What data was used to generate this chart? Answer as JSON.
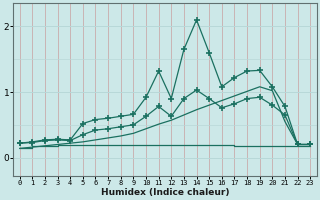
{
  "title": "",
  "xlabel": "Humidex (Indice chaleur)",
  "bg_color": "#cce8e8",
  "grid_color_h": "#b8d8d8",
  "grid_color_v": "#d4b0b0",
  "line_color": "#1a7060",
  "xlim": [
    -0.5,
    23.5
  ],
  "ylim": [
    -0.28,
    2.35
  ],
  "yticks": [
    0,
    1,
    2
  ],
  "ytick_labels": [
    "0",
    "1",
    "2"
  ],
  "xticks": [
    0,
    1,
    2,
    3,
    4,
    5,
    6,
    7,
    8,
    9,
    10,
    11,
    12,
    13,
    14,
    15,
    16,
    17,
    18,
    19,
    20,
    21,
    22,
    23
  ],
  "series1_marked": {
    "x": [
      0,
      1,
      2,
      3,
      4,
      5,
      6,
      7,
      8,
      9,
      10,
      11,
      12,
      13,
      14,
      15,
      16,
      17,
      18,
      19,
      20,
      21,
      22,
      23
    ],
    "y": [
      0.22,
      0.24,
      0.27,
      0.28,
      0.27,
      0.52,
      0.58,
      0.6,
      0.63,
      0.66,
      0.92,
      1.32,
      0.9,
      1.65,
      2.1,
      1.6,
      1.08,
      1.22,
      1.32,
      1.33,
      1.08,
      0.78,
      0.2,
      0.2
    ]
  },
  "series2_marked": {
    "x": [
      0,
      1,
      2,
      3,
      4,
      5,
      6,
      7,
      8,
      9,
      10,
      11,
      12,
      13,
      14,
      15,
      16,
      17,
      18,
      19,
      20,
      21,
      22,
      23
    ],
    "y": [
      0.22,
      0.23,
      0.26,
      0.27,
      0.26,
      0.35,
      0.42,
      0.44,
      0.47,
      0.5,
      0.63,
      0.78,
      0.63,
      0.9,
      1.03,
      0.9,
      0.76,
      0.82,
      0.9,
      0.92,
      0.8,
      0.65,
      0.2,
      0.2
    ]
  },
  "series3_line": {
    "x": [
      0,
      1,
      2,
      3,
      4,
      5,
      6,
      7,
      8,
      9,
      10,
      11,
      12,
      13,
      14,
      15,
      16,
      17,
      18,
      19,
      20,
      21,
      22,
      23
    ],
    "y": [
      0.14,
      0.16,
      0.18,
      0.2,
      0.22,
      0.24,
      0.27,
      0.3,
      0.33,
      0.37,
      0.44,
      0.51,
      0.57,
      0.65,
      0.73,
      0.8,
      0.87,
      0.94,
      1.01,
      1.08,
      1.02,
      0.55,
      0.2,
      0.2
    ]
  },
  "series4_flat": {
    "x": [
      0,
      1,
      2,
      3,
      4,
      5,
      6,
      7,
      8,
      9,
      10,
      11,
      12,
      13,
      14,
      15,
      16,
      17,
      18,
      19,
      20,
      21,
      22,
      23
    ],
    "y": [
      0.15,
      0.17,
      0.18,
      0.19,
      0.19,
      0.19,
      0.19,
      0.19,
      0.19,
      0.19,
      0.19,
      0.19,
      0.19,
      0.19,
      0.19,
      0.19,
      0.19,
      0.18,
      0.18,
      0.18,
      0.18,
      0.18,
      0.18,
      0.18
    ]
  }
}
